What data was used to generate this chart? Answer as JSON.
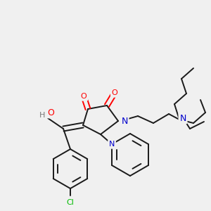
{
  "bg_color": "#f0f0f0",
  "bond_color": "#1a1a1a",
  "atom_colors": {
    "O": "#ff0000",
    "N": "#0000cc",
    "Cl": "#00bb00",
    "H": "#777777",
    "C": "#1a1a1a"
  },
  "figsize": [
    3.0,
    3.0
  ],
  "dpi": 100
}
